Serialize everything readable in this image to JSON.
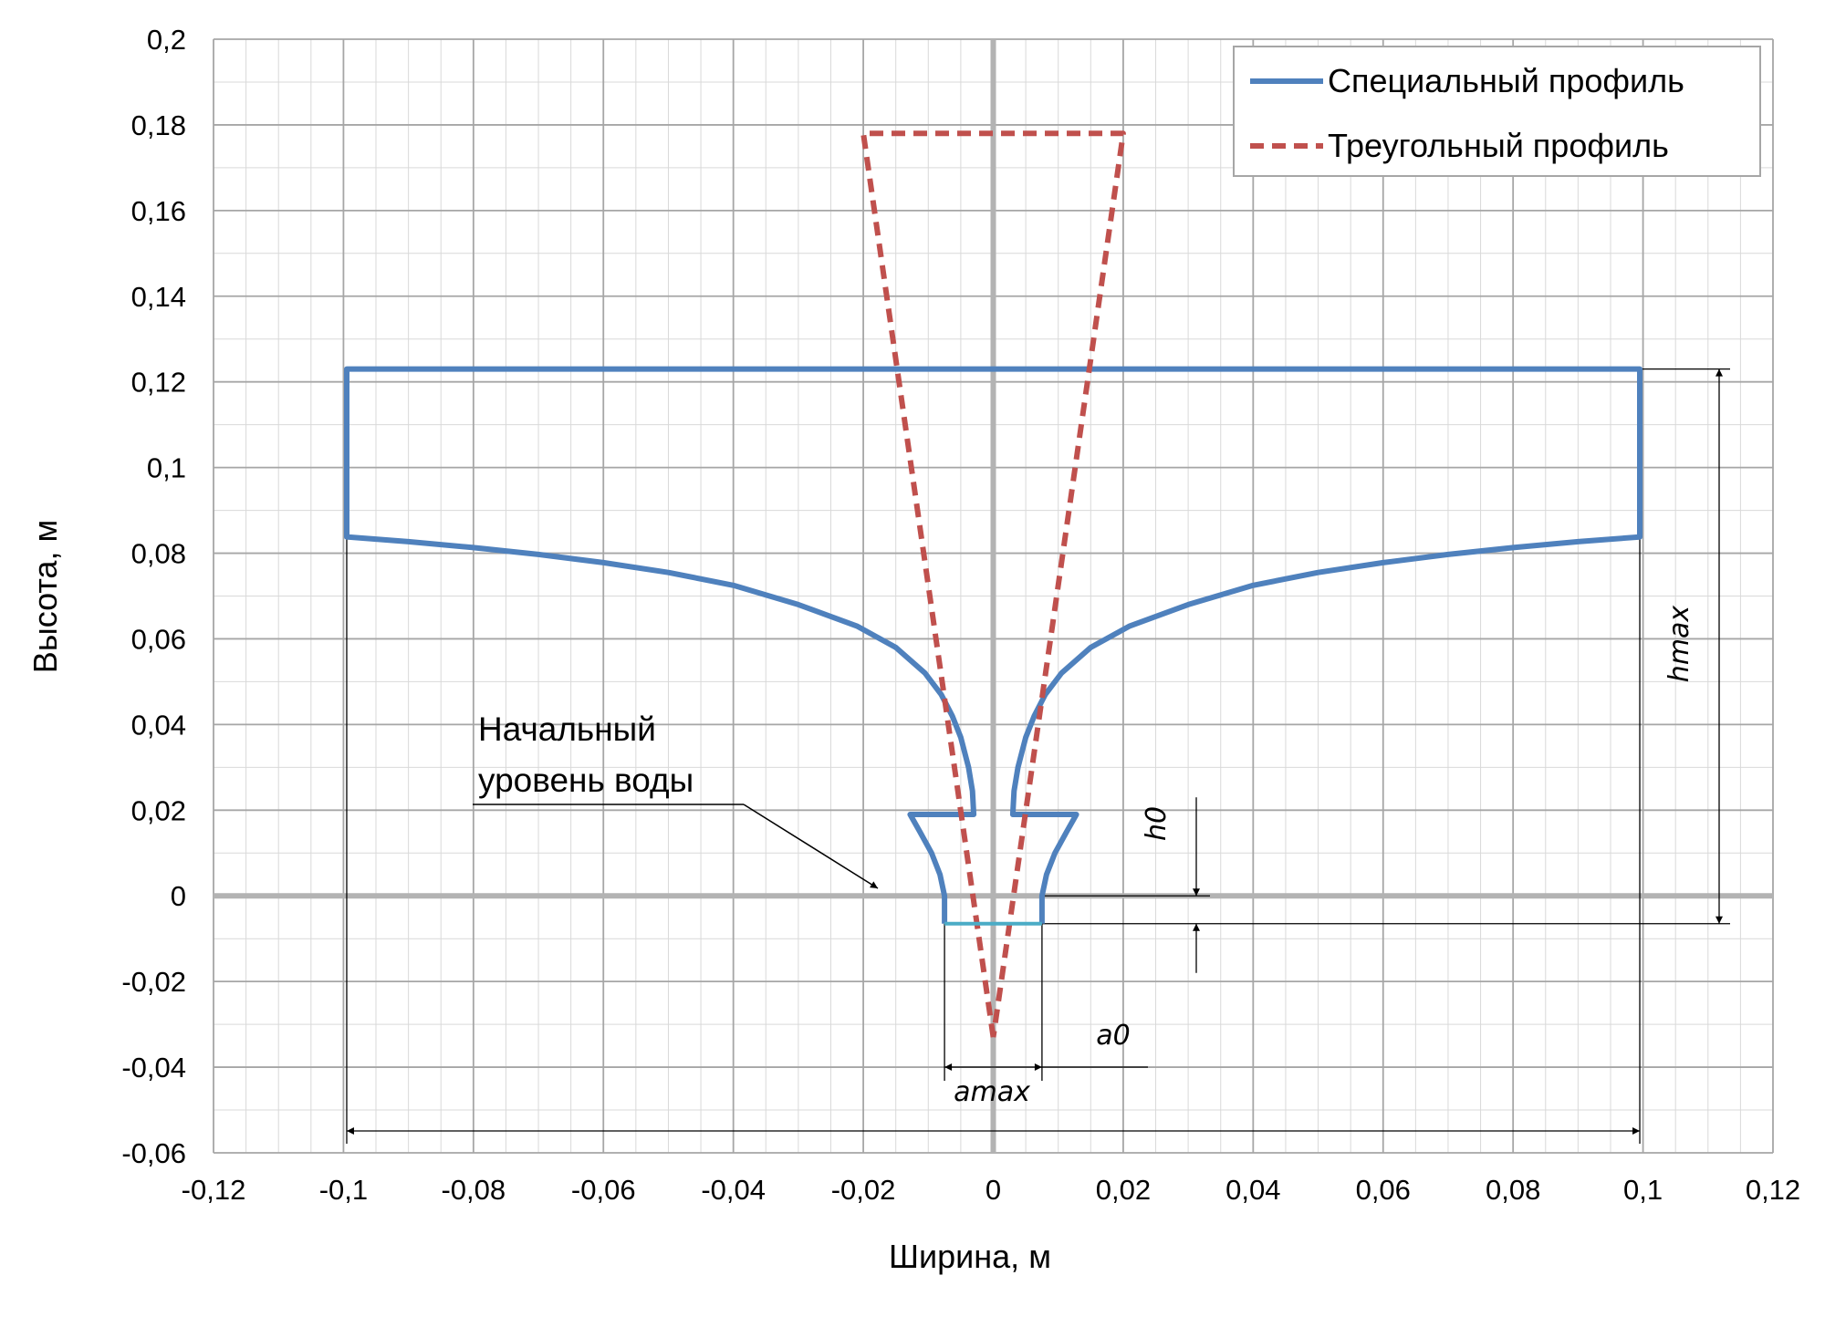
{
  "chart_data": {
    "type": "line",
    "xlabel": "Ширина, м",
    "ylabel": "Высота, м",
    "xlim": [
      -0.12,
      0.12
    ],
    "ylim": [
      -0.06,
      0.2
    ],
    "x_ticks": [
      -0.12,
      -0.1,
      -0.08,
      -0.06,
      -0.04,
      -0.02,
      0,
      0.02,
      0.04,
      0.06,
      0.08,
      0.1,
      0.12
    ],
    "y_ticks": [
      -0.06,
      -0.04,
      -0.02,
      0,
      0.02,
      0.04,
      0.06,
      0.08,
      0.1,
      0.12,
      0.14,
      0.16,
      0.18,
      0.2
    ],
    "x_tick_labels": [
      "-0,12",
      "-0,1",
      "-0,08",
      "-0,06",
      "-0,04",
      "-0,02",
      "0",
      "0,02",
      "0,04",
      "0,06",
      "0,08",
      "0,1",
      "0,12"
    ],
    "y_tick_labels": [
      "-0,06",
      "-0,04",
      "-0,02",
      "0",
      "0,02",
      "0,04",
      "0,06",
      "0,08",
      "0,1",
      "0,12",
      "0,14",
      "0,16",
      "0,18",
      "0,2"
    ],
    "grid": true,
    "minor_grid": true,
    "legend_position": "top-right",
    "series": [
      {
        "name": "Специальный профиль",
        "style": "solid",
        "color": "#4F81BD",
        "points": [
          [
            -0.0075,
            -0.0065
          ],
          [
            -0.0075,
            0.0
          ],
          [
            -0.0082,
            0.005
          ],
          [
            -0.0095,
            0.01
          ],
          [
            -0.0113,
            0.015
          ],
          [
            -0.0128,
            0.019
          ],
          [
            -0.003,
            0.019
          ],
          [
            -0.0032,
            0.0245
          ],
          [
            -0.0038,
            0.03
          ],
          [
            -0.005,
            0.037
          ],
          [
            -0.0063,
            0.042
          ],
          [
            -0.008,
            0.047
          ],
          [
            -0.0105,
            0.052
          ],
          [
            -0.015,
            0.058
          ],
          [
            -0.021,
            0.063
          ],
          [
            -0.03,
            0.068
          ],
          [
            -0.04,
            0.0725
          ],
          [
            -0.05,
            0.0755
          ],
          [
            -0.06,
            0.0778
          ],
          [
            -0.07,
            0.0797
          ],
          [
            -0.08,
            0.0813
          ],
          [
            -0.09,
            0.0827
          ],
          [
            -0.0995,
            0.0838
          ],
          [
            -0.0995,
            0.123
          ],
          [
            0.0995,
            0.123
          ],
          [
            0.0995,
            0.0838
          ],
          [
            0.09,
            0.0827
          ],
          [
            0.08,
            0.0813
          ],
          [
            0.07,
            0.0797
          ],
          [
            0.06,
            0.0778
          ],
          [
            0.05,
            0.0755
          ],
          [
            0.04,
            0.0725
          ],
          [
            0.03,
            0.068
          ],
          [
            0.021,
            0.063
          ],
          [
            0.015,
            0.058
          ],
          [
            0.0105,
            0.052
          ],
          [
            0.008,
            0.047
          ],
          [
            0.0063,
            0.042
          ],
          [
            0.005,
            0.037
          ],
          [
            0.0038,
            0.03
          ],
          [
            0.0032,
            0.0245
          ],
          [
            0.003,
            0.019
          ],
          [
            0.0128,
            0.019
          ],
          [
            0.0113,
            0.015
          ],
          [
            0.0095,
            0.01
          ],
          [
            0.0082,
            0.005
          ],
          [
            0.0075,
            0.0
          ],
          [
            0.0075,
            -0.0065
          ]
        ]
      },
      {
        "name": "Треугольный профиль",
        "style": "dashed",
        "color": "#C0504D",
        "points": [
          [
            0,
            -0.033
          ],
          [
            -0.02,
            0.178
          ],
          [
            0.02,
            0.178
          ],
          [
            0,
            -0.033
          ]
        ]
      }
    ],
    "bottom_segment": {
      "points": [
        [
          -0.0075,
          -0.0065
        ],
        [
          0.0075,
          -0.0065
        ]
      ],
      "color": "#4BACC6"
    },
    "annotations": [
      {
        "id": "water-level",
        "lines": [
          "Начальный",
          "уровень воды"
        ],
        "target": [
          -0.016,
          0.0
        ]
      }
    ],
    "dimensions": {
      "h_max": "hmax",
      "h_0": "h0",
      "a_0": "a0",
      "a_max": "amax"
    }
  },
  "colors": {
    "grid_major": "#a6a6a6",
    "grid_minor": "#d9d9d9",
    "zero_axis": "#b3b3b3",
    "dim_line": "#000000"
  }
}
